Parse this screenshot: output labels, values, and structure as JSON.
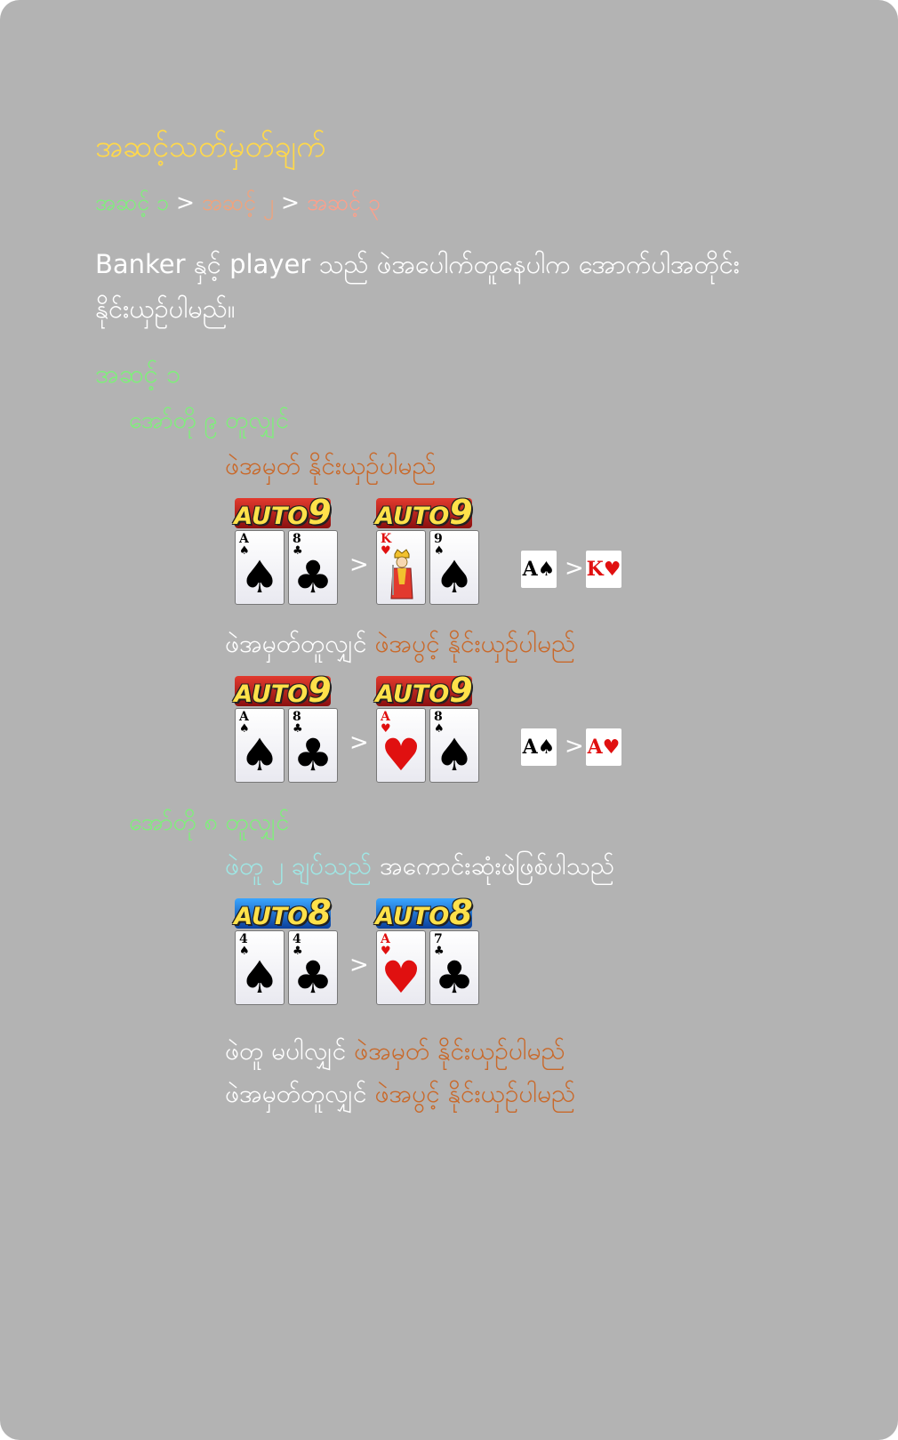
{
  "title": "အဆင့်သတ်မှတ်ချက်",
  "breadcrumb": {
    "step1": "အဆင့် ၁",
    "sep1": ">",
    "step2": "အဆင့် ၂",
    "sep2": ">",
    "step3": "အဆင့် ၃"
  },
  "description": {
    "line1": "Banker နှင့် player သည် ဖဲအပေါက်တူနေပါက အောက်ပါအတိုင်း",
    "line2": "နိုင်းယှဉ်ပါမည်။"
  },
  "level1": "အဆင့် ၁",
  "sections": {
    "auto9": {
      "heading": "အော်တို ၉ တူလျှင်",
      "rule1": "ဖဲအမှတ် နိုင်းယှဉ်ပါမည်",
      "rule2_prefix": "ဖဲအမှတ်တူလျှင် ",
      "rule2_highlight": "ဖဲအပွင့် နိုင်းယှဉ်ပါမည်"
    },
    "auto8": {
      "heading": "အော်တို ၈ တူလျှင်",
      "rule1_highlight": "ဖဲတူ ၂ ချပ်သည်",
      "rule1_suffix": " အကောင်းဆုံးဖဲဖြစ်ပါသည်",
      "rule2_prefix": "ဖဲတူ မပါလျှင် ",
      "rule2_highlight": "ဖဲအမှတ် နိုင်းယှဉ်ပါမည်",
      "rule3_prefix": "ဖဲအမှတ်တူလျှင် ",
      "rule3_highlight": "ဖဲအပွင့် နိုင်းယှဉ်ပါမည်"
    }
  },
  "badges": {
    "auto": "AUTO",
    "nine": "9",
    "eight": "8"
  },
  "comparisons": {
    "gt": ">",
    "ex1": {
      "left": [
        {
          "rank": "A",
          "suit": "♠"
        },
        {
          "rank": "8",
          "suit": "♣"
        }
      ],
      "right": [
        {
          "rank": "K",
          "suit": "♥"
        },
        {
          "rank": "9",
          "suit": "♠"
        }
      ],
      "chip_left": {
        "rank": "A",
        "suit": "♠"
      },
      "chip_right": {
        "rank": "K",
        "suit": "♥"
      }
    },
    "ex2": {
      "left": [
        {
          "rank": "A",
          "suit": "♠"
        },
        {
          "rank": "8",
          "suit": "♣"
        }
      ],
      "right": [
        {
          "rank": "A",
          "suit": "♥"
        },
        {
          "rank": "8",
          "suit": "♠"
        }
      ],
      "chip_left": {
        "rank": "A",
        "suit": "♠"
      },
      "chip_right": {
        "rank": "A",
        "suit": "♥"
      }
    },
    "ex3": {
      "left": [
        {
          "rank": "4",
          "suit": "♠"
        },
        {
          "rank": "4",
          "suit": "♣"
        }
      ],
      "right": [
        {
          "rank": "A",
          "suit": "♥"
        },
        {
          "rank": "7",
          "suit": "♣"
        }
      ]
    }
  },
  "colors": {
    "panel": "#b3b3b3",
    "title": "#ffd84a",
    "green": "#7ef07a",
    "orange": "#c9692a",
    "cyan": "#9ee8e6",
    "red_suit": "#e01010"
  }
}
